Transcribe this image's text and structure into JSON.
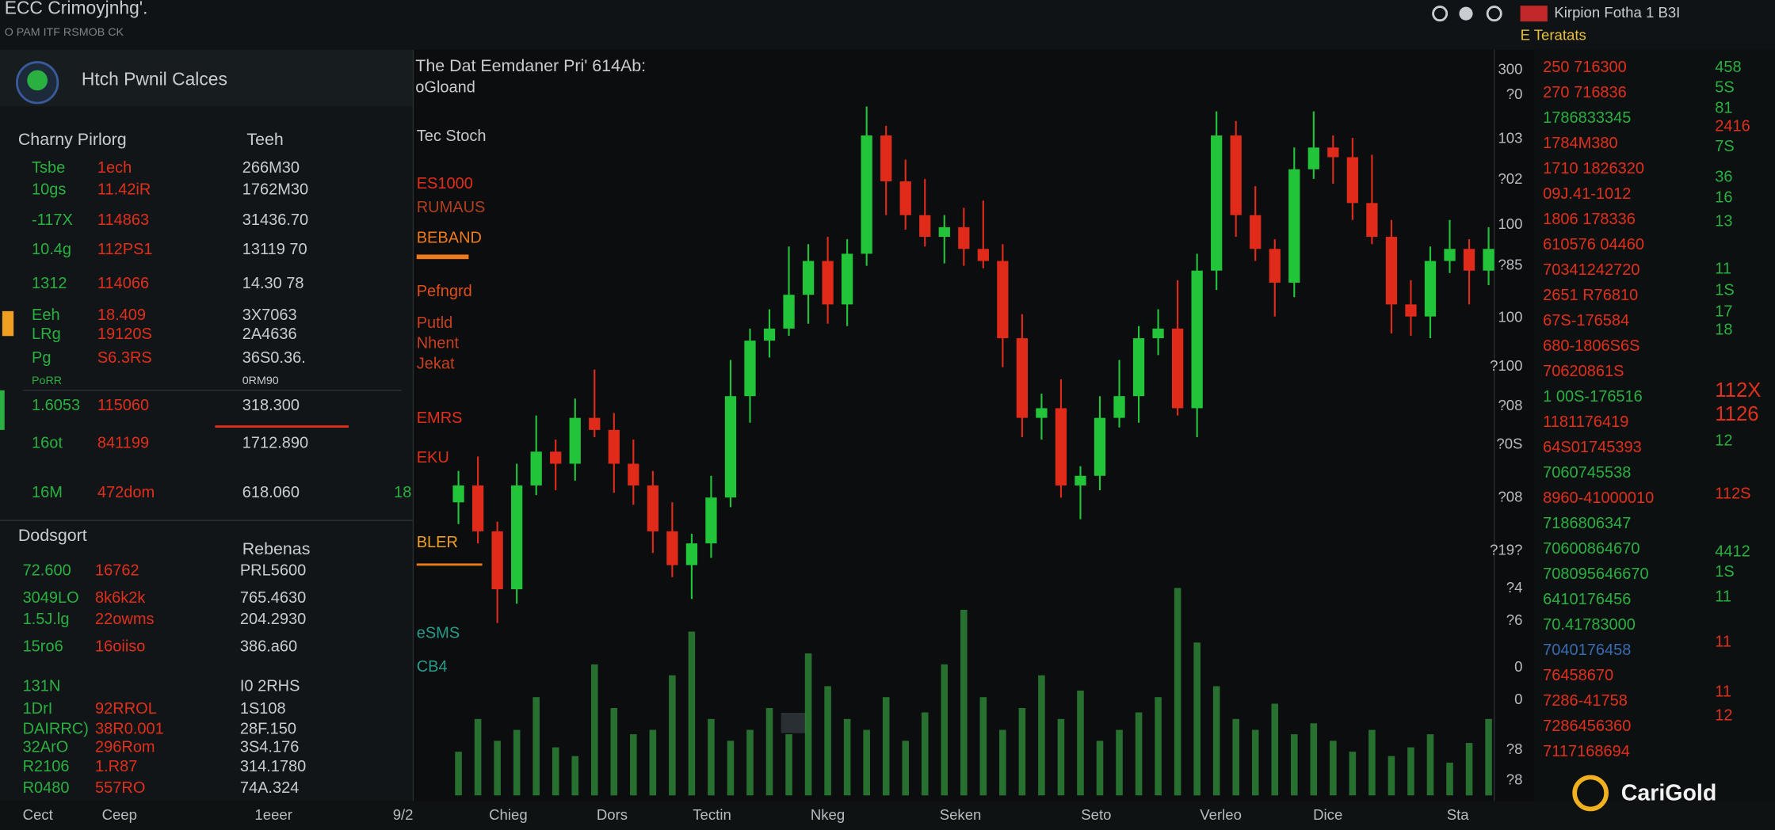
{
  "header": {
    "title": "ECC Crimoyjnhg'.",
    "subtitle": "O PAM ITF RSMOB CK",
    "ticker": "Kirpion Fotha 1 B3I",
    "tab": "E Teratats"
  },
  "left_panel": {
    "name": "Htch Pwnil Calces",
    "columns": [
      "Charny Pirlorg",
      "Teeh"
    ],
    "rows": [
      [
        "Tsbe",
        "1ech",
        "266M30"
      ],
      [
        "10gs",
        "11.42iR",
        "1762M30"
      ],
      [
        "-117X",
        "114863",
        "31436.70"
      ],
      [
        "10.4g",
        "112PS1",
        "13119 70"
      ],
      [
        "1312",
        "114066",
        "14.30 78"
      ],
      [
        "Eeh",
        "18.409",
        "3X7063"
      ],
      [
        "LRg",
        "19120S",
        "2A4636"
      ],
      [
        "Pg",
        "S6.3RS",
        "36S0.36."
      ],
      [
        "PoRR",
        "",
        "0RM90"
      ],
      [
        "1.6053",
        "115060",
        "318.300"
      ],
      [
        "16ot",
        "841199",
        "1712.890"
      ],
      [
        "16M",
        "472dom",
        "618.060"
      ]
    ],
    "side_note": "18",
    "section2": {
      "columns": [
        "Dodsgort",
        "Rebenas"
      ],
      "rows": [
        [
          "72.600",
          "16762",
          "PRL5600"
        ],
        [
          "3049LO",
          "8k6k2k",
          "765.4630"
        ],
        [
          "1.5J.lg",
          "22owms",
          "204.2930"
        ],
        [
          "15ro6",
          "16oiiso",
          "386.a60"
        ],
        [
          "131N",
          "",
          "I0 2RHS"
        ],
        [
          "1DrI",
          "92RROL",
          "1S108"
        ],
        [
          "DAIRRC)",
          "38R0.001",
          "28F.150"
        ],
        [
          "32ArO",
          "296Rom",
          "3S4.176"
        ],
        [
          "R2106",
          "1.R87",
          "314.1780"
        ],
        [
          "R0480",
          "557RO",
          "74A.324"
        ]
      ]
    }
  },
  "chart_data": {
    "type": "candlestick",
    "title": "The Dat Eemdaner Pri' 614Ab:",
    "subtitle": "oGloand",
    "annotations": [
      {
        "text": "Tec Stoch",
        "color": "#c8c8c8"
      },
      {
        "text": "ES1000",
        "color": "#e0301c"
      },
      {
        "text": "RUMAUS",
        "color": "#b04020"
      },
      {
        "text": "BEBAND",
        "color": "#f07a1a"
      },
      {
        "text": "Pefngrd",
        "color": "#e0501c"
      },
      {
        "text": "Putld",
        "color": "#c84020"
      },
      {
        "text": "Nhent",
        "color": "#c84020"
      },
      {
        "text": "Jekat",
        "color": "#c84020"
      },
      {
        "text": "EMRS",
        "color": "#e0301c"
      },
      {
        "text": "EKU",
        "color": "#e0301c"
      },
      {
        "text": "BLER",
        "color": "#f0a020"
      },
      {
        "text": "eSMS",
        "color": "#2a9a8a"
      },
      {
        "text": "CB4",
        "color": "#2a9a8a"
      }
    ],
    "open": [
      120,
      127,
      108,
      84,
      127,
      141,
      136,
      155,
      150,
      136,
      127,
      108,
      94,
      103,
      122,
      164,
      187,
      192,
      206,
      220,
      202,
      223,
      272,
      253,
      239,
      230,
      234,
      225,
      220,
      188,
      155,
      159,
      127,
      131,
      155,
      164,
      188,
      192,
      159,
      216,
      272,
      239,
      225,
      211,
      258,
      267,
      263,
      244,
      230,
      202,
      197,
      220,
      225,
      216
    ],
    "high": [
      133,
      139,
      112,
      136,
      156,
      146,
      163,
      175,
      157,
      146,
      133,
      120,
      107,
      131,
      179,
      192,
      200,
      226,
      227,
      230,
      229,
      284,
      276,
      262,
      254,
      239,
      242,
      245,
      227,
      198,
      165,
      171,
      135,
      164,
      179,
      193,
      200,
      212,
      223,
      282,
      278,
      251,
      229,
      267,
      282,
      272,
      271,
      264,
      237,
      212,
      226,
      237,
      229,
      234
    ],
    "low": [
      111,
      103,
      70,
      78,
      123,
      125,
      129,
      147,
      124,
      119,
      99,
      89,
      80,
      97,
      118,
      153,
      180,
      189,
      194,
      194,
      193,
      218,
      239,
      233,
      226,
      219,
      218,
      217,
      176,
      147,
      146,
      122,
      113,
      125,
      151,
      153,
      181,
      156,
      147,
      208,
      230,
      220,
      197,
      205,
      254,
      252,
      237,
      227,
      190,
      189,
      188,
      215,
      202,
      210
    ],
    "close": [
      127,
      108,
      84,
      127,
      141,
      136,
      155,
      150,
      136,
      127,
      108,
      94,
      103,
      122,
      164,
      187,
      192,
      206,
      220,
      202,
      223,
      272,
      253,
      239,
      230,
      234,
      225,
      220,
      188,
      155,
      159,
      127,
      131,
      155,
      164,
      188,
      192,
      159,
      216,
      272,
      239,
      225,
      211,
      258,
      267,
      263,
      244,
      230,
      202,
      197,
      220,
      225,
      216,
      225
    ],
    "up_color": "#22c43a",
    "down_color": "#e02a1a",
    "ylim": [
      0,
      300
    ],
    "volume": [
      20,
      35,
      25,
      30,
      45,
      22,
      18,
      60,
      40,
      28,
      30,
      55,
      75,
      35,
      25,
      30,
      40,
      28,
      65,
      50,
      35,
      30,
      45,
      25,
      38,
      60,
      85,
      45,
      30,
      40,
      55,
      35,
      48,
      25,
      30,
      38,
      45,
      95,
      70,
      50,
      35,
      30,
      42,
      28,
      33,
      25,
      20,
      30,
      18,
      22,
      28,
      15,
      24,
      35
    ],
    "volume_ylim": [
      0,
      100
    ],
    "volume_color": "#2f8a3a"
  },
  "axis_labels": {
    "right": [
      "300",
      "?0",
      "103",
      "?02",
      "100",
      "?85",
      "100",
      "?100",
      "?08",
      "?0S",
      "?08",
      "?19?",
      "?4",
      "?6",
      "0",
      "0",
      "?8",
      "?8"
    ],
    "bottom": [
      "Cect",
      "Ceep",
      "1eeer",
      "9/2",
      "Chieg",
      "Dors",
      "Tectin",
      "Nkeg",
      "Seken",
      "Seto",
      "Verleo",
      "Dice",
      "Sta"
    ]
  },
  "order_book": {
    "left": [
      {
        "text": "250 716300",
        "color": "#e0301c"
      },
      {
        "text": "270 716836",
        "color": "#e0301c"
      },
      {
        "text": "1786833345",
        "color": "#2ab040"
      },
      {
        "text": "1784M380",
        "color": "#e0301c"
      },
      {
        "text": "1710 1826320",
        "color": "#e0301c"
      },
      {
        "text": "09J.41-1012",
        "color": "#e0301c"
      },
      {
        "text": "1806 178336",
        "color": "#e0301c"
      },
      {
        "text": "610576 04460",
        "color": "#e0301c"
      },
      {
        "text": "70341242720",
        "color": "#e0301c"
      },
      {
        "text": "2651 R76810",
        "color": "#e0301c"
      },
      {
        "text": "67S-176584",
        "color": "#e0301c"
      },
      {
        "text": "680-1806S6S",
        "color": "#e0301c"
      },
      {
        "text": "70620861S",
        "color": "#e0301c"
      },
      {
        "text": "1 00S-176516",
        "color": "#2ab040"
      },
      {
        "text": "1181176419",
        "color": "#e0301c"
      },
      {
        "text": "64S01745393",
        "color": "#e0301c"
      },
      {
        "text": "7060745538",
        "color": "#2ab040"
      },
      {
        "text": "8960-41000010",
        "color": "#e0301c"
      },
      {
        "text": "7186806347",
        "color": "#2ab040"
      },
      {
        "text": "70600864670",
        "color": "#2ab040"
      },
      {
        "text": "708095646670",
        "color": "#2ab040"
      },
      {
        "text": "6410176456",
        "color": "#2ab040"
      },
      {
        "text": "70.41783000",
        "color": "#2ab040"
      },
      {
        "text": "7040176458",
        "color": "#3a6ab0"
      },
      {
        "text": "76458670",
        "color": "#e0301c"
      },
      {
        "text": "7286-41758",
        "color": "#e0301c"
      },
      {
        "text": "7286456360",
        "color": "#e0301c"
      },
      {
        "text": "7117168694",
        "color": "#e0301c"
      }
    ],
    "right": [
      {
        "text": "458",
        "color": "#2ab040"
      },
      {
        "text": "5S",
        "color": "#2ab040"
      },
      {
        "text": "81",
        "color": "#2ab040"
      },
      {
        "text": "2416",
        "color": "#e0301c"
      },
      {
        "text": "7S",
        "color": "#2ab040"
      },
      {
        "text": "36",
        "color": "#2ab040"
      },
      {
        "text": "16",
        "color": "#2ab040"
      },
      {
        "text": "13",
        "color": "#2ab040"
      },
      {
        "text": "11",
        "color": "#2ab040"
      },
      {
        "text": "1S",
        "color": "#2ab040"
      },
      {
        "text": "17",
        "color": "#2ab040"
      },
      {
        "text": "18",
        "color": "#2ab040"
      },
      {
        "text": "112X",
        "color": "#e0301c"
      },
      {
        "text": "1126",
        "color": "#e0301c"
      },
      {
        "text": "12",
        "color": "#2ab040"
      },
      {
        "text": "112S",
        "color": "#e0301c"
      },
      {
        "text": "4412",
        "color": "#2ab040"
      },
      {
        "text": "1S",
        "color": "#2ab040"
      },
      {
        "text": "11",
        "color": "#2ab040"
      },
      {
        "text": "11",
        "color": "#e0301c"
      },
      {
        "text": "11",
        "color": "#e0301c"
      },
      {
        "text": "12",
        "color": "#e0301c"
      }
    ]
  },
  "logo": "CariGold"
}
